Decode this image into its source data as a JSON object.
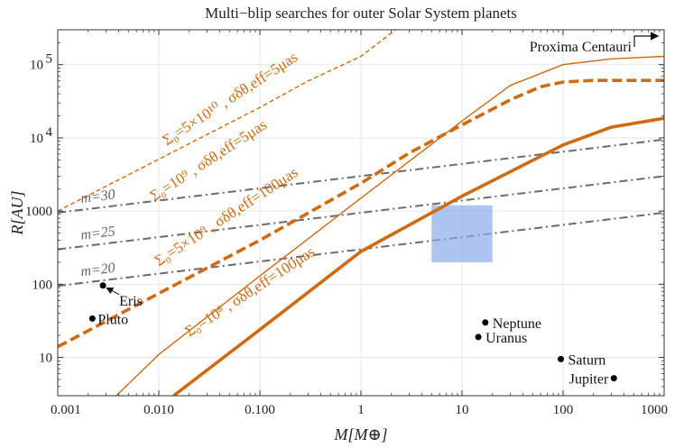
{
  "chart_data": {
    "type": "line",
    "title": "Multi−blip searches for outer Solar System planets",
    "xlabel": "M[M⊕]",
    "ylabel": "R[AU]",
    "xscale": "log",
    "yscale": "log",
    "xlim": [
      0.001,
      1000
    ],
    "ylim": [
      3,
      300000
    ],
    "grid": true,
    "x_ticks": [
      {
        "v": 0.001,
        "label": "0.001"
      },
      {
        "v": 0.01,
        "label": "0.010"
      },
      {
        "v": 0.1,
        "label": "0.100"
      },
      {
        "v": 1,
        "label": "1"
      },
      {
        "v": 10,
        "label": "10"
      },
      {
        "v": 100,
        "label": "100"
      },
      {
        "v": 1000,
        "label": "1000"
      }
    ],
    "y_ticks": [
      {
        "v": 10,
        "label": "10"
      },
      {
        "v": 100,
        "label": "100"
      },
      {
        "v": 1000,
        "label": "1000"
      },
      {
        "v": 10000,
        "label": "10",
        "sup": "4"
      },
      {
        "v": 100000,
        "label": "10",
        "sup": "5"
      }
    ],
    "reference": {
      "label": "Proxima Centauri",
      "R": 268000
    },
    "magnitude_lines": [
      {
        "name": "m=30",
        "label": "m=30",
        "points": [
          [
            0.001,
            950
          ],
          [
            1000,
            9500
          ]
        ]
      },
      {
        "name": "m=25",
        "label": "m=25",
        "points": [
          [
            0.001,
            300
          ],
          [
            1000,
            3000
          ]
        ]
      },
      {
        "name": "m=20",
        "label": "m=20",
        "points": [
          [
            0.001,
            95
          ],
          [
            1000,
            950
          ]
        ]
      }
    ],
    "series": [
      {
        "name": "Sigma0=5e10, sigma_eff=5 muas",
        "label": "Σ₀=5×10¹⁰ , σδθ,eff=5μas",
        "style": "dashed-thin",
        "points": [
          [
            0.001,
            1000
          ],
          [
            0.01,
            5100
          ],
          [
            0.1,
            26000
          ],
          [
            0.3,
            60000
          ],
          [
            1,
            130000
          ],
          [
            2.2,
            300000
          ]
        ]
      },
      {
        "name": "Sigma0=1e9, sigma_eff=5 muas",
        "label": "Σ₀=10⁹ , σδθ,eff=5μas",
        "style": "dashed-thick",
        "points": [
          [
            0.001,
            14
          ],
          [
            0.01,
            75
          ],
          [
            0.1,
            400
          ],
          [
            1,
            2400
          ],
          [
            3,
            6200
          ],
          [
            10,
            15000
          ],
          [
            30,
            33000
          ],
          [
            60,
            50000
          ],
          [
            100,
            58000
          ],
          [
            200,
            61000
          ],
          [
            1000,
            61000
          ]
        ]
      },
      {
        "name": "Sigma0=5e9, sigma_eff=100 muas",
        "label": "Σ₀=5×10⁹ , σδθ,eff=100μas",
        "style": "solid-thin",
        "points": [
          [
            0.0038,
            3
          ],
          [
            0.01,
            11
          ],
          [
            0.1,
            130
          ],
          [
            1,
            1500
          ],
          [
            10,
            17000
          ],
          [
            30,
            52000
          ],
          [
            100,
            100000
          ],
          [
            300,
            120000
          ],
          [
            1000,
            130000
          ]
        ]
      },
      {
        "name": "Sigma0=1e8, sigma_eff=100 muas",
        "label": "Σ₀=10⁸ , σδθ,eff=100μas",
        "style": "solid-thick",
        "points": [
          [
            0.014,
            3
          ],
          [
            0.1,
            24
          ],
          [
            1,
            280
          ],
          [
            10,
            1600
          ],
          [
            100,
            8000
          ],
          [
            300,
            14000
          ],
          [
            1000,
            18500
          ]
        ]
      }
    ],
    "region": {
      "name": "Planet Nine region",
      "x": [
        5,
        20
      ],
      "y": [
        200,
        1200
      ]
    },
    "planets": [
      {
        "name": "Pluto",
        "M": 0.0022,
        "R": 34
      },
      {
        "name": "Eris",
        "M": 0.0028,
        "R": 96
      },
      {
        "name": "Neptune",
        "M": 17,
        "R": 30
      },
      {
        "name": "Uranus",
        "M": 14.5,
        "R": 19
      },
      {
        "name": "Saturn",
        "M": 95,
        "R": 9.5
      },
      {
        "name": "Jupiter",
        "M": 318,
        "R": 5.2
      }
    ]
  }
}
